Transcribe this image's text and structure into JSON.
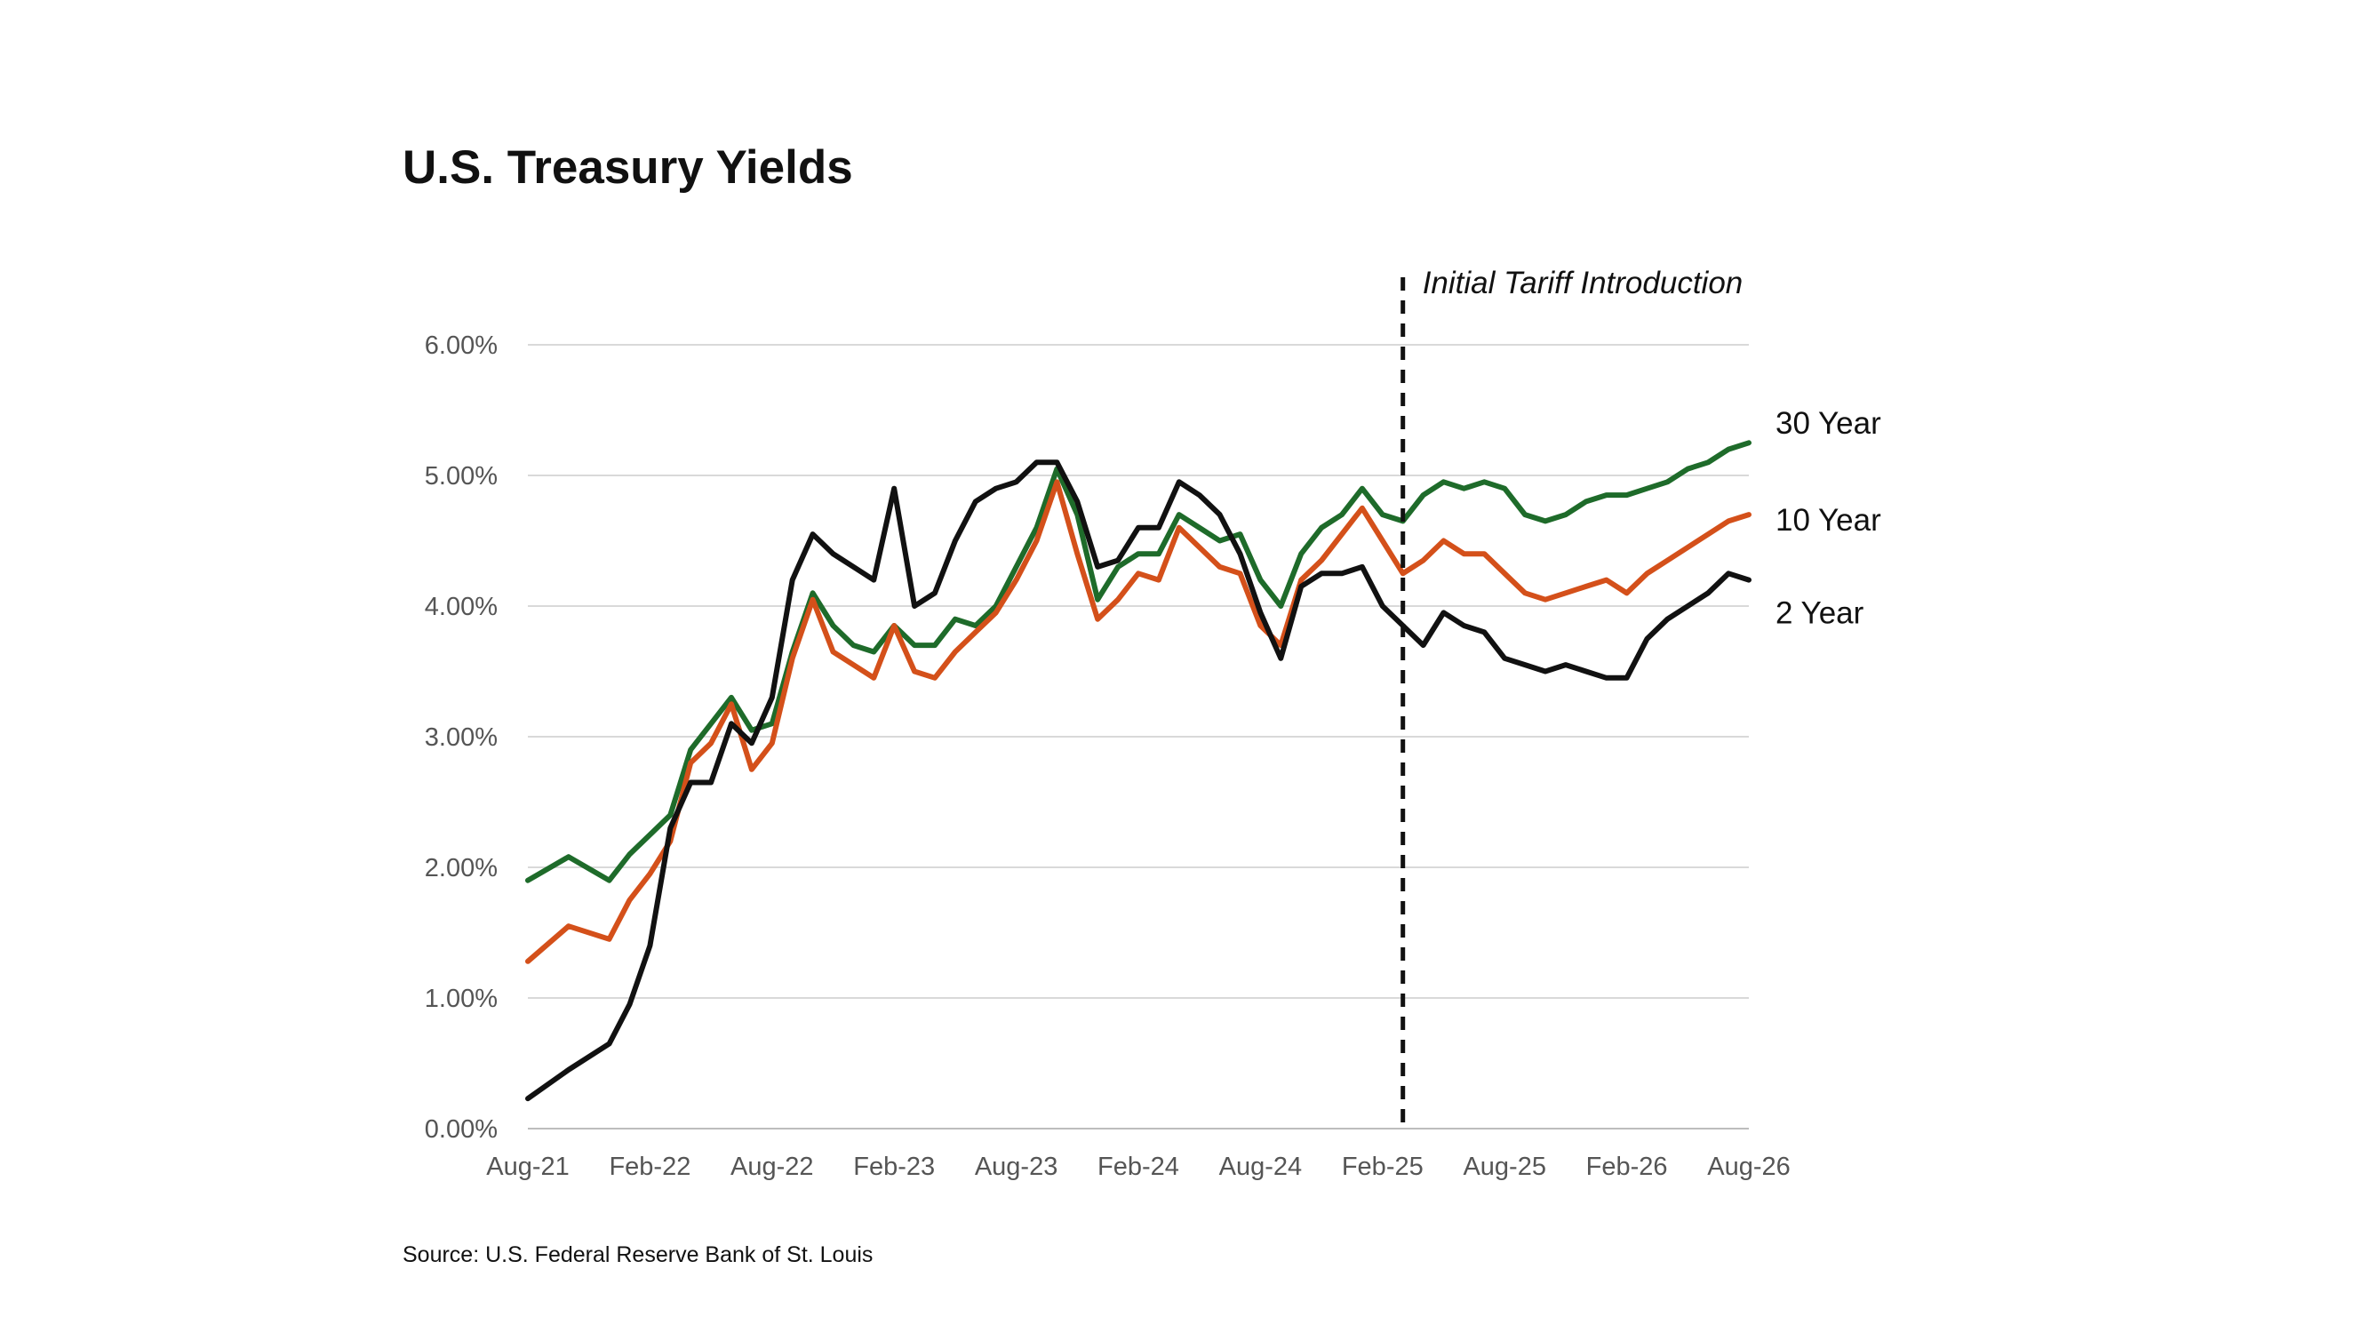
{
  "chart_data": {
    "type": "line",
    "title": "U.S. Treasury Yields",
    "source": "Source: U.S. Federal Reserve Bank of St. Louis",
    "xlabel": "",
    "ylabel": "",
    "x_ticks": [
      "Aug-21",
      "Feb-22",
      "Aug-22",
      "Feb-23",
      "Aug-23",
      "Feb-24",
      "Aug-24",
      "Feb-25",
      "Aug-25",
      "Feb-26",
      "Aug-26"
    ],
    "y_ticks": [
      "0.00%",
      "1.00%",
      "2.00%",
      "3.00%",
      "4.00%",
      "5.00%",
      "6.00%"
    ],
    "ylim": [
      0,
      6
    ],
    "grid": "horizontal",
    "legend": "end-of-line labels",
    "annotation": {
      "x": "2025-03",
      "label": "Initial Tariff Introduction"
    },
    "series": [
      {
        "name": "30 Year",
        "color": "#1e6b2a",
        "points": [
          [
            "2021-08",
            1.9
          ],
          [
            "2021-10",
            2.08
          ],
          [
            "2021-12",
            1.9
          ],
          [
            "2022-01",
            2.1
          ],
          [
            "2022-02",
            2.25
          ],
          [
            "2022-03",
            2.4
          ],
          [
            "2022-04",
            2.9
          ],
          [
            "2022-05",
            3.1
          ],
          [
            "2022-06",
            3.3
          ],
          [
            "2022-07",
            3.05
          ],
          [
            "2022-08",
            3.1
          ],
          [
            "2022-09",
            3.65
          ],
          [
            "2022-10",
            4.1
          ],
          [
            "2022-11",
            3.85
          ],
          [
            "2022-12",
            3.7
          ],
          [
            "2023-01",
            3.65
          ],
          [
            "2023-02",
            3.85
          ],
          [
            "2023-03",
            3.7
          ],
          [
            "2023-04",
            3.7
          ],
          [
            "2023-05",
            3.9
          ],
          [
            "2023-06",
            3.85
          ],
          [
            "2023-07",
            4.0
          ],
          [
            "2023-08",
            4.3
          ],
          [
            "2023-09",
            4.6
          ],
          [
            "2023-10",
            5.05
          ],
          [
            "2023-11",
            4.7
          ],
          [
            "2023-12",
            4.05
          ],
          [
            "2024-01",
            4.3
          ],
          [
            "2024-02",
            4.4
          ],
          [
            "2024-03",
            4.4
          ],
          [
            "2024-04",
            4.7
          ],
          [
            "2024-05",
            4.6
          ],
          [
            "2024-06",
            4.5
          ],
          [
            "2024-07",
            4.55
          ],
          [
            "2024-08",
            4.2
          ],
          [
            "2024-09",
            4.0
          ],
          [
            "2024-10",
            4.4
          ],
          [
            "2024-11",
            4.6
          ],
          [
            "2024-12",
            4.7
          ],
          [
            "2025-01",
            4.9
          ],
          [
            "2025-02",
            4.7
          ],
          [
            "2025-03",
            4.65
          ],
          [
            "2025-04",
            4.85
          ],
          [
            "2025-05",
            4.95
          ],
          [
            "2025-06",
            4.9
          ],
          [
            "2025-07",
            4.95
          ],
          [
            "2025-08",
            4.9
          ],
          [
            "2025-09",
            4.7
          ],
          [
            "2025-10",
            4.65
          ],
          [
            "2025-11",
            4.7
          ],
          [
            "2025-12",
            4.8
          ],
          [
            "2026-01",
            4.85
          ],
          [
            "2026-02",
            4.85
          ],
          [
            "2026-03",
            4.9
          ],
          [
            "2026-04",
            4.95
          ],
          [
            "2026-05",
            5.05
          ],
          [
            "2026-06",
            5.1
          ],
          [
            "2026-07",
            5.2
          ],
          [
            "2026-08",
            5.25
          ]
        ]
      },
      {
        "name": "10 Year",
        "color": "#d4501a",
        "points": [
          [
            "2021-08",
            1.28
          ],
          [
            "2021-10",
            1.55
          ],
          [
            "2021-12",
            1.45
          ],
          [
            "2022-01",
            1.75
          ],
          [
            "2022-02",
            1.95
          ],
          [
            "2022-03",
            2.2
          ],
          [
            "2022-04",
            2.8
          ],
          [
            "2022-05",
            2.95
          ],
          [
            "2022-06",
            3.25
          ],
          [
            "2022-07",
            2.75
          ],
          [
            "2022-08",
            2.95
          ],
          [
            "2022-09",
            3.6
          ],
          [
            "2022-10",
            4.05
          ],
          [
            "2022-11",
            3.65
          ],
          [
            "2022-12",
            3.55
          ],
          [
            "2023-01",
            3.45
          ],
          [
            "2023-02",
            3.85
          ],
          [
            "2023-03",
            3.5
          ],
          [
            "2023-04",
            3.45
          ],
          [
            "2023-05",
            3.65
          ],
          [
            "2023-06",
            3.8
          ],
          [
            "2023-07",
            3.95
          ],
          [
            "2023-08",
            4.2
          ],
          [
            "2023-09",
            4.5
          ],
          [
            "2023-10",
            4.95
          ],
          [
            "2023-11",
            4.4
          ],
          [
            "2023-12",
            3.9
          ],
          [
            "2024-01",
            4.05
          ],
          [
            "2024-02",
            4.25
          ],
          [
            "2024-03",
            4.2
          ],
          [
            "2024-04",
            4.6
          ],
          [
            "2024-05",
            4.45
          ],
          [
            "2024-06",
            4.3
          ],
          [
            "2024-07",
            4.25
          ],
          [
            "2024-08",
            3.85
          ],
          [
            "2024-09",
            3.7
          ],
          [
            "2024-10",
            4.2
          ],
          [
            "2024-11",
            4.35
          ],
          [
            "2024-12",
            4.55
          ],
          [
            "2025-01",
            4.75
          ],
          [
            "2025-02",
            4.5
          ],
          [
            "2025-03",
            4.25
          ],
          [
            "2025-04",
            4.35
          ],
          [
            "2025-05",
            4.5
          ],
          [
            "2025-06",
            4.4
          ],
          [
            "2025-07",
            4.4
          ],
          [
            "2025-08",
            4.25
          ],
          [
            "2025-09",
            4.1
          ],
          [
            "2025-10",
            4.05
          ],
          [
            "2025-11",
            4.1
          ],
          [
            "2025-12",
            4.15
          ],
          [
            "2026-01",
            4.2
          ],
          [
            "2026-02",
            4.1
          ],
          [
            "2026-03",
            4.25
          ],
          [
            "2026-04",
            4.35
          ],
          [
            "2026-05",
            4.45
          ],
          [
            "2026-06",
            4.55
          ],
          [
            "2026-07",
            4.65
          ],
          [
            "2026-08",
            4.7
          ]
        ]
      },
      {
        "name": "2 Year",
        "color": "#111111",
        "points": [
          [
            "2021-08",
            0.23
          ],
          [
            "2021-10",
            0.45
          ],
          [
            "2021-12",
            0.65
          ],
          [
            "2022-01",
            0.95
          ],
          [
            "2022-02",
            1.4
          ],
          [
            "2022-03",
            2.3
          ],
          [
            "2022-04",
            2.65
          ],
          [
            "2022-05",
            2.65
          ],
          [
            "2022-06",
            3.1
          ],
          [
            "2022-07",
            2.95
          ],
          [
            "2022-08",
            3.3
          ],
          [
            "2022-09",
            4.2
          ],
          [
            "2022-10",
            4.55
          ],
          [
            "2022-11",
            4.4
          ],
          [
            "2022-12",
            4.3
          ],
          [
            "2023-01",
            4.2
          ],
          [
            "2023-02",
            4.9
          ],
          [
            "2023-03",
            4.0
          ],
          [
            "2023-04",
            4.1
          ],
          [
            "2023-05",
            4.5
          ],
          [
            "2023-06",
            4.8
          ],
          [
            "2023-07",
            4.9
          ],
          [
            "2023-08",
            4.95
          ],
          [
            "2023-09",
            5.1
          ],
          [
            "2023-10",
            5.1
          ],
          [
            "2023-11",
            4.8
          ],
          [
            "2023-12",
            4.3
          ],
          [
            "2024-01",
            4.35
          ],
          [
            "2024-02",
            4.6
          ],
          [
            "2024-03",
            4.6
          ],
          [
            "2024-04",
            4.95
          ],
          [
            "2024-05",
            4.85
          ],
          [
            "2024-06",
            4.7
          ],
          [
            "2024-07",
            4.4
          ],
          [
            "2024-08",
            3.95
          ],
          [
            "2024-09",
            3.6
          ],
          [
            "2024-10",
            4.15
          ],
          [
            "2024-11",
            4.25
          ],
          [
            "2024-12",
            4.25
          ],
          [
            "2025-01",
            4.3
          ],
          [
            "2025-02",
            4.0
          ],
          [
            "2025-03",
            3.85
          ],
          [
            "2025-04",
            3.7
          ],
          [
            "2025-05",
            3.95
          ],
          [
            "2025-06",
            3.85
          ],
          [
            "2025-07",
            3.8
          ],
          [
            "2025-08",
            3.6
          ],
          [
            "2025-09",
            3.55
          ],
          [
            "2025-10",
            3.5
          ],
          [
            "2025-11",
            3.55
          ],
          [
            "2025-12",
            3.5
          ],
          [
            "2026-01",
            3.45
          ],
          [
            "2026-02",
            3.45
          ],
          [
            "2026-03",
            3.75
          ],
          [
            "2026-04",
            3.9
          ],
          [
            "2026-05",
            4.0
          ],
          [
            "2026-06",
            4.1
          ],
          [
            "2026-07",
            4.25
          ],
          [
            "2026-08",
            4.2
          ]
        ]
      }
    ]
  }
}
